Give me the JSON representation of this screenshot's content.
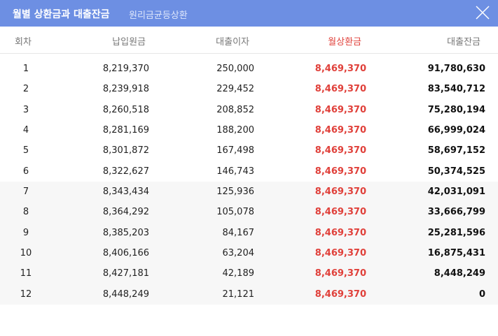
{
  "header": {
    "title": "월별 상환금과 대출잔금",
    "subtitle": "원리금균등상환"
  },
  "table": {
    "columns": [
      "회차",
      "납입원금",
      "대출이자",
      "월상환금",
      "대출잔금"
    ],
    "rows": [
      [
        "1",
        "8,219,370",
        "250,000",
        "8,469,370",
        "91,780,630"
      ],
      [
        "2",
        "8,239,918",
        "229,452",
        "8,469,370",
        "83,540,712"
      ],
      [
        "3",
        "8,260,518",
        "208,852",
        "8,469,370",
        "75,280,194"
      ],
      [
        "4",
        "8,281,169",
        "188,200",
        "8,469,370",
        "66,999,024"
      ],
      [
        "5",
        "8,301,872",
        "167,498",
        "8,469,370",
        "58,697,152"
      ],
      [
        "6",
        "8,322,627",
        "146,743",
        "8,469,370",
        "50,374,525"
      ],
      [
        "7",
        "8,343,434",
        "125,936",
        "8,469,370",
        "42,031,091"
      ],
      [
        "8",
        "8,364,292",
        "105,078",
        "8,469,370",
        "33,666,799"
      ],
      [
        "9",
        "8,385,203",
        "84,167",
        "8,469,370",
        "25,281,596"
      ],
      [
        "10",
        "8,406,166",
        "63,204",
        "8,469,370",
        "16,875,431"
      ],
      [
        "11",
        "8,427,181",
        "42,189",
        "8,469,370",
        "8,448,249"
      ],
      [
        "12",
        "8,448,249",
        "21,121",
        "8,469,370",
        "0"
      ]
    ]
  }
}
